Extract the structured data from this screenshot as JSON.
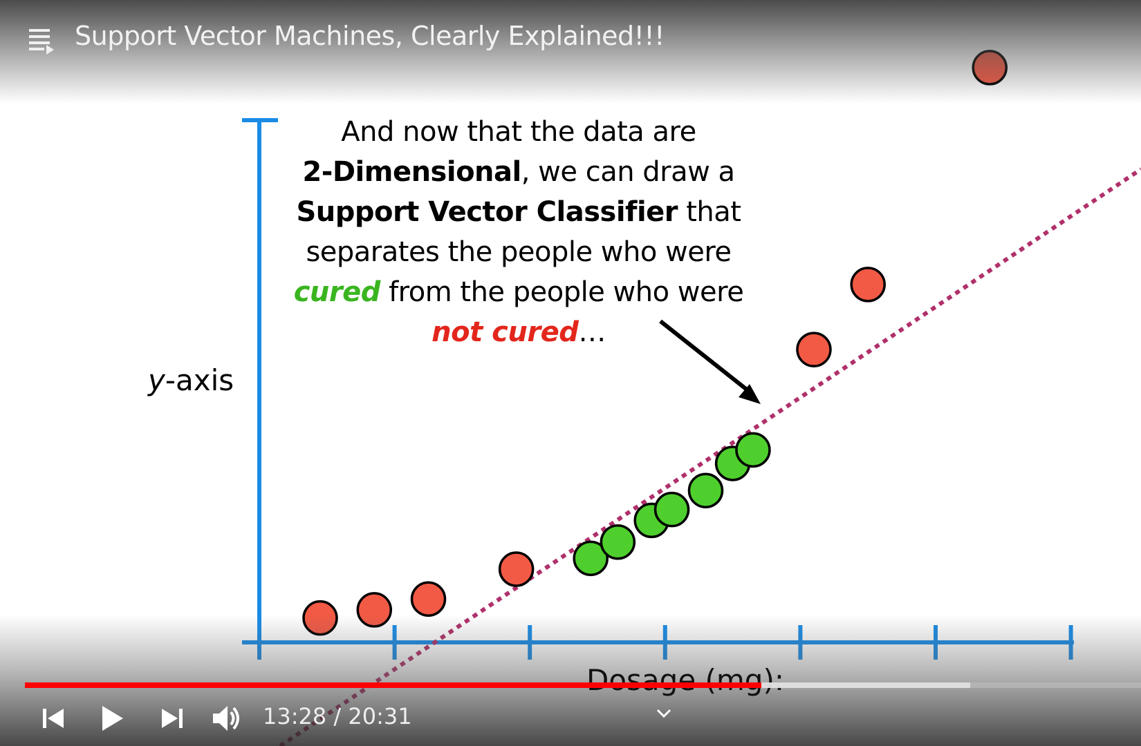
{
  "video": {
    "title": "Support Vector Machines, Clearly Explained!!!"
  },
  "slide": {
    "caption": {
      "line1": "And now that the data are",
      "line2_bold": "2-Dimensional",
      "line2_rest": ", we can draw a",
      "line3_bold": "Support Vector Classifier",
      "line3_rest": " that",
      "line4": "separates the people who were",
      "line5_green": "cured",
      "line5_rest": " from the people who were",
      "line6_red": "not cured",
      "line6_rest": "…"
    },
    "y_axis_label_italic": "y",
    "y_axis_label_rest": "-axis",
    "x_axis_label": "Dosage (mg):"
  },
  "chart_data": {
    "type": "scatter",
    "title": "",
    "xlabel": "Dosage (mg):",
    "ylabel": "y-axis",
    "x_ticks_count": 6,
    "series": [
      {
        "name": "",
        "color": "#f25a45",
        "points": [
          [
            0.45,
            0.45
          ],
          [
            0.85,
            0.6
          ],
          [
            1.25,
            0.8
          ],
          [
            1.9,
            1.35
          ],
          [
            4.1,
            5.4
          ],
          [
            4.5,
            6.6
          ],
          [
            5.4,
            10.6
          ]
        ]
      },
      {
        "name": "",
        "color": "#4fcf2e",
        "points": [
          [
            2.45,
            1.55
          ],
          [
            2.65,
            1.85
          ],
          [
            2.9,
            2.25
          ],
          [
            3.05,
            2.45
          ],
          [
            3.3,
            2.8
          ],
          [
            3.5,
            3.3
          ],
          [
            3.65,
            3.55
          ]
        ]
      }
    ],
    "separator": {
      "style": "dotted",
      "color": "#b0306a"
    }
  },
  "player": {
    "current_time": "13:28",
    "separator": " / ",
    "duration": "20:31",
    "played_fraction": 0.66,
    "buffered_fraction": 0.847,
    "accent": "#ff0000"
  }
}
